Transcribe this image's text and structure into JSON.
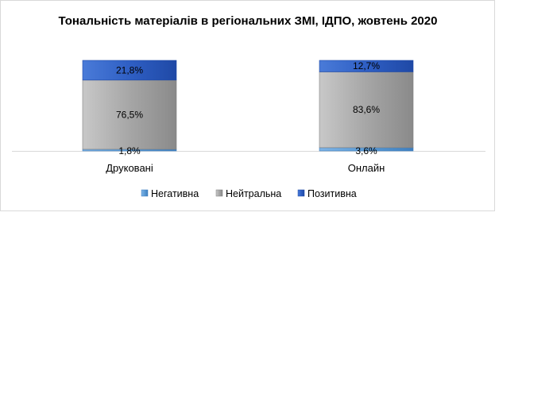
{
  "chart_data": {
    "type": "bar",
    "stacked": true,
    "percent_stacked": true,
    "title": "Тональність матеріалів в регіональних ЗМІ, ІДПО, жовтень 2020",
    "categories": [
      "Друковані",
      "Онлайн"
    ],
    "series": [
      {
        "name": "Негативна",
        "values": [
          1.8,
          3.6
        ],
        "labels": [
          "1,8%",
          "3,6%"
        ],
        "color": "#5b9bd5"
      },
      {
        "name": "Нейтральна",
        "values": [
          76.5,
          83.6
        ],
        "labels": [
          "76,5%",
          "83,6%"
        ],
        "color": "#a6a6a6"
      },
      {
        "name": "Позитивна",
        "values": [
          21.8,
          12.7
        ],
        "labels": [
          "21,8%",
          "12,7%"
        ],
        "color": "#2f5fc4"
      }
    ],
    "ylim": [
      0,
      100
    ],
    "grid": false,
    "legend_position": "bottom"
  }
}
